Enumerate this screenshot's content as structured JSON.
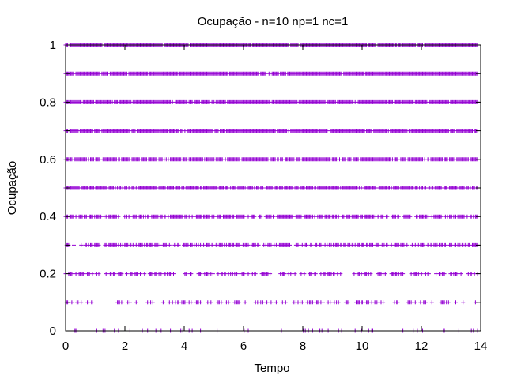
{
  "chart_data": {
    "type": "scatter",
    "title": "Ocupação - n=10 np=1 nc=1",
    "xlabel": "Tempo",
    "ylabel": "Ocupação",
    "xlim": [
      0,
      14
    ],
    "ylim": [
      0,
      1
    ],
    "x_ticks": [
      0,
      2,
      4,
      6,
      8,
      10,
      12,
      14
    ],
    "x_tick_labels": [
      "0",
      "2",
      "4",
      "6",
      "8",
      "10",
      "12",
      "14"
    ],
    "y_ticks": [
      0,
      0.1,
      0.2,
      0.3,
      0.4,
      0.5,
      0.6,
      0.7,
      0.8,
      0.9,
      1
    ],
    "y_tick_labels": [
      "0",
      "",
      "0.2",
      "",
      "0.4",
      "",
      "0.6",
      "",
      "0.8",
      "",
      "1"
    ],
    "marker": "+",
    "grid": false,
    "legend": "none",
    "color": "#9400d3",
    "series": [
      {
        "y": 1.0,
        "x_range": [
          0,
          13.9
        ],
        "density": 0.97
      },
      {
        "y": 0.9,
        "x_range": [
          0,
          13.9
        ],
        "density": 0.95
      },
      {
        "y": 0.8,
        "x_range": [
          0,
          13.9
        ],
        "density": 0.92
      },
      {
        "y": 0.7,
        "x_range": [
          0,
          13.9
        ],
        "density": 0.9
      },
      {
        "y": 0.6,
        "x_range": [
          0,
          13.9
        ],
        "density": 0.85
      },
      {
        "y": 0.5,
        "x_range": [
          0,
          13.9
        ],
        "density": 0.8
      },
      {
        "y": 0.4,
        "x_range": [
          0,
          13.9
        ],
        "density": 0.7
      },
      {
        "y": 0.3,
        "x_range": [
          0,
          13.9
        ],
        "density": 0.55
      },
      {
        "y": 0.2,
        "x_range": [
          0,
          13.9
        ],
        "density": 0.4
      },
      {
        "y": 0.1,
        "x_range": [
          0,
          13.9
        ],
        "density": 0.25
      },
      {
        "y": 0.0,
        "x_range": [
          0,
          13.9
        ],
        "density": 0.1
      }
    ]
  }
}
